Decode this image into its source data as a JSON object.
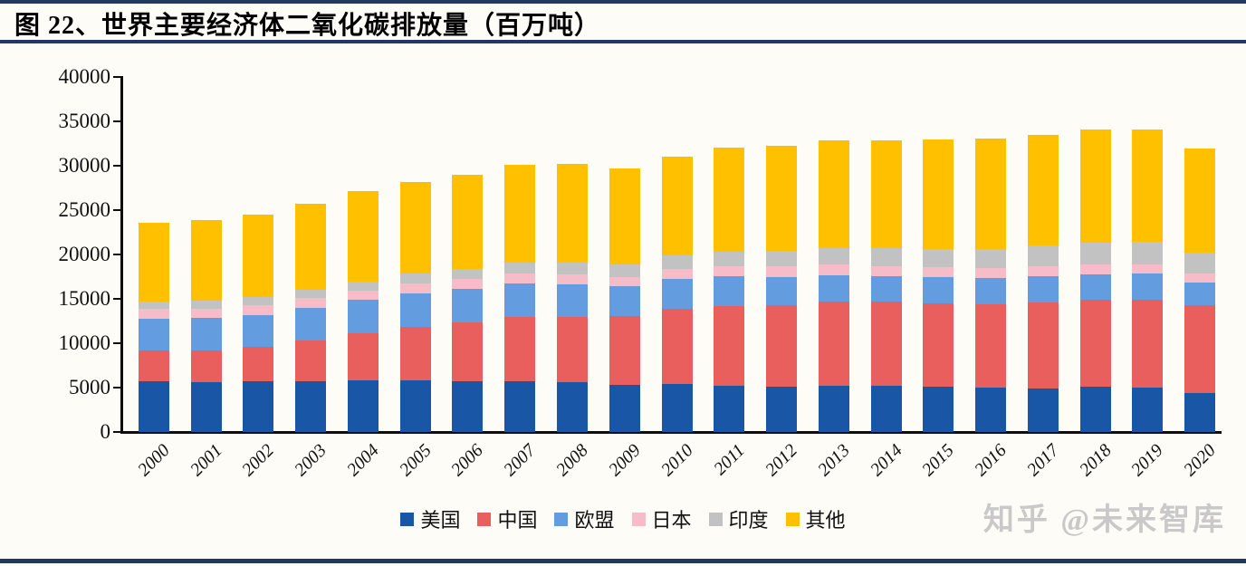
{
  "page": {
    "title": "图 22、世界主要经济体二氧化碳排放量（百万吨）",
    "watermark": "知乎 @未来智库",
    "accent_color": "#1F3864",
    "background_color": "#FDFCF7"
  },
  "chart_data": {
    "type": "bar",
    "stacked": true,
    "title": "世界主要经济体二氧化碳排放量（百万吨）",
    "unit": "百万吨",
    "grid": false,
    "legend_position": "bottom",
    "ylim": [
      0,
      40000
    ],
    "ytick_step": 5000,
    "y_ticks": [
      0,
      5000,
      10000,
      15000,
      20000,
      25000,
      30000,
      35000,
      40000
    ],
    "categories": [
      "2000",
      "2001",
      "2002",
      "2003",
      "2004",
      "2005",
      "2006",
      "2007",
      "2008",
      "2009",
      "2010",
      "2011",
      "2012",
      "2013",
      "2014",
      "2015",
      "2016",
      "2017",
      "2018",
      "2019",
      "2020"
    ],
    "series": [
      {
        "key": "us",
        "name": "美国",
        "color": "#1956A6",
        "values": [
          5700,
          5650,
          5700,
          5750,
          5800,
          5800,
          5700,
          5750,
          5600,
          5280,
          5380,
          5230,
          5080,
          5230,
          5250,
          5110,
          5010,
          4910,
          5110,
          4980,
          4400
        ]
      },
      {
        "key": "china",
        "name": "中国",
        "color": "#E85F5E",
        "values": [
          3450,
          3550,
          3850,
          4550,
          5300,
          6050,
          6600,
          7200,
          7400,
          7750,
          8450,
          9000,
          9200,
          9420,
          9450,
          9400,
          9400,
          9700,
          9750,
          9950,
          9880
        ]
      },
      {
        "key": "eu",
        "name": "欧盟",
        "color": "#649CE0",
        "values": [
          3600,
          3650,
          3650,
          3700,
          3750,
          3800,
          3800,
          3750,
          3650,
          3350,
          3450,
          3300,
          3200,
          3000,
          2850,
          2900,
          2900,
          2950,
          2900,
          2880,
          2600
        ]
      },
      {
        "key": "japan",
        "name": "日本",
        "color": "#F6BDC8",
        "values": [
          1080,
          1070,
          1100,
          1120,
          1120,
          1130,
          1120,
          1150,
          1130,
          1060,
          1110,
          1150,
          1200,
          1200,
          1170,
          1150,
          1140,
          1130,
          1120,
          1060,
          1000
        ]
      },
      {
        "key": "india",
        "name": "印度",
        "color": "#C2C2C2",
        "values": [
          850,
          870,
          900,
          930,
          990,
          1040,
          1110,
          1190,
          1290,
          1430,
          1540,
          1620,
          1720,
          1860,
          2000,
          2060,
          2160,
          2330,
          2450,
          2550,
          2300
        ]
      },
      {
        "key": "others",
        "name": "其他",
        "color": "#FFC000",
        "values": [
          8920,
          9060,
          9300,
          9650,
          10140,
          10330,
          10670,
          11060,
          11180,
          10780,
          11120,
          11700,
          11850,
          12140,
          12180,
          12330,
          12440,
          12430,
          12720,
          12630,
          11770
        ]
      }
    ],
    "totals": [
      23600,
      23850,
      24500,
      25700,
      27100,
      28150,
      29000,
      30100,
      30250,
      29650,
      31050,
      32000,
      32250,
      32850,
      32900,
      32950,
      33050,
      33450,
      34050,
      34050,
      31950
    ]
  }
}
